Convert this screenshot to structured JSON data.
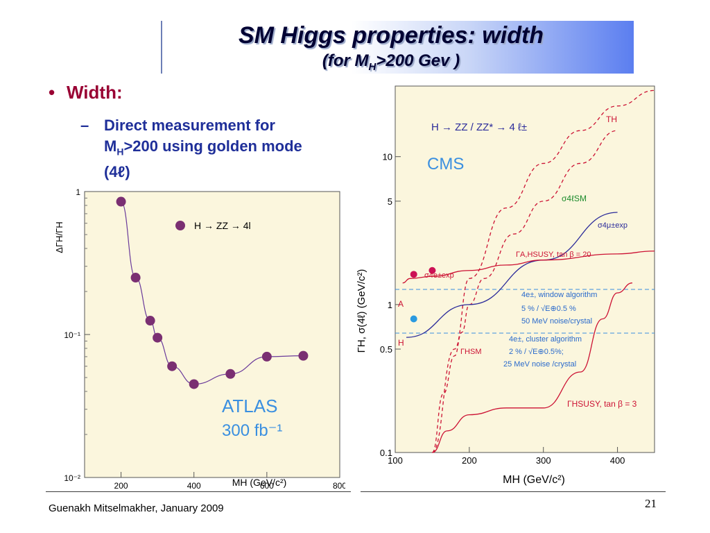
{
  "slide": {
    "title_main": "SM Higgs properties: width",
    "title_sub_prefix": "(for M",
    "title_sub_subscript": "H",
    "title_sub_suffix": ">200 Gev )",
    "bullet_marker": "•",
    "bullet_label": "Width:",
    "dash_marker": "–",
    "sub_line1": "Direct measurement for",
    "sub_line2_prefix": "M",
    "sub_line2_subscript": "H",
    "sub_line2_suffix": ">200 using golden mode",
    "sub_line3": "(4ℓ)",
    "footer_author": "Guenakh Mitselmakher, January 2009",
    "page_number": "21"
  },
  "chart_data": [
    {
      "type": "scatter",
      "ylabel": "ΔΓH/ΓH",
      "xlabel": "MH (GeV/c²)",
      "legend": "H → ZZ → 4l",
      "annotation_line1": "ATLAS",
      "annotation_line2": "300 fb⁻¹",
      "xlim": [
        100,
        800
      ],
      "ylim": [
        0.01,
        1
      ],
      "yscale": "log",
      "xticks": [
        "200",
        "400",
        "600",
        "800"
      ],
      "yticks": [
        "1",
        "10⁻¹",
        "10⁻²"
      ],
      "x": [
        200,
        240,
        280,
        300,
        340,
        400,
        500,
        600,
        700
      ],
      "y": [
        0.85,
        0.25,
        0.125,
        0.095,
        0.06,
        0.045,
        0.053,
        0.07,
        0.071
      ],
      "colors": {
        "background": "#fbf6dd",
        "marker": "#7a2f72",
        "curve": "#6a3a9a",
        "annotation": "#3a8fe0"
      }
    },
    {
      "type": "line",
      "ylabel": "ΓH, σ(4ℓ) (GeV/c²)",
      "xlabel": "MH (GeV/c²)",
      "header": "H → ZZ / ZZ* → 4 ℓ±",
      "experiment": "CMS",
      "xlim": [
        100,
        450
      ],
      "ylim": [
        0.1,
        30
      ],
      "yscale": "log",
      "xticks": [
        "100",
        "200",
        "300",
        "400"
      ],
      "yticks": [
        "10",
        "5",
        "1",
        "0.5",
        "0.1"
      ],
      "labels": {
        "th": "TH",
        "sigma_sm": "σ4ℓSM",
        "sigma_4mu": "σ4μ±exp",
        "gamma_susy_ah": "ΓA,HSUSY, tan β = 20",
        "sigma_4e": "σ4e±exp",
        "a": "A",
        "h": "H",
        "gamma_sm": "ΓHSM",
        "gamma_susy_h": "ΓHSUSY, tan β = 3",
        "window_l1": "4e±, window algorithm",
        "window_l2": "5 % / √E⊕0.5 %",
        "window_l3": "50 MeV noise/crystal",
        "cluster_l1": "4e±, cluster algorithm",
        "cluster_l2": "2 % / √E⊕0.5%;",
        "cluster_l3": "25 MeV noise /crystal"
      },
      "series": [
        {
          "name": "TH",
          "x": [
            150,
            180,
            200,
            250,
            300,
            350,
            400,
            450
          ],
          "y": [
            0.1,
            0.5,
            1.5,
            4.5,
            9,
            15,
            22,
            28
          ]
        },
        {
          "name": "ΓHSM",
          "x": [
            150,
            165,
            180,
            190,
            200,
            220,
            260,
            300,
            350,
            400
          ],
          "y": [
            0.1,
            0.25,
            0.45,
            0.65,
            1.0,
            1.5,
            3.0,
            5.0,
            9.0,
            15.0
          ]
        },
        {
          "name": "σ4μexp",
          "x": [
            115,
            200,
            300,
            400
          ],
          "y": [
            0.6,
            1.0,
            2.0,
            4.2
          ]
        },
        {
          "name": "ΓA,HSUSY",
          "x": [
            110,
            120,
            150,
            200,
            250,
            300,
            400,
            450
          ],
          "y": [
            1.4,
            1.5,
            1.55,
            1.7,
            1.85,
            2.0,
            2.2,
            2.3
          ]
        },
        {
          "name": "ΓHSUSY tanβ=3",
          "x": [
            150,
            170,
            200,
            250,
            300,
            350,
            380,
            400,
            420
          ],
          "y": [
            0.1,
            0.14,
            0.18,
            0.2,
            0.2,
            0.35,
            0.8,
            1.2,
            1.4
          ]
        }
      ],
      "points": [
        {
          "name": "σ4e± red",
          "x": [
            125,
            150
          ],
          "y": [
            1.6,
            1.7
          ]
        },
        {
          "name": "cluster blue",
          "x": [
            125
          ],
          "y": [
            0.8
          ]
        }
      ],
      "colors": {
        "background": "#fbf6dd",
        "axis_text": "#000000",
        "sm": "#1a8a2a",
        "exp": "#2a2a9a",
        "susy": "#cc1133",
        "blue_text": "#2a6acc",
        "cms": "#3a8fe0"
      }
    }
  ]
}
